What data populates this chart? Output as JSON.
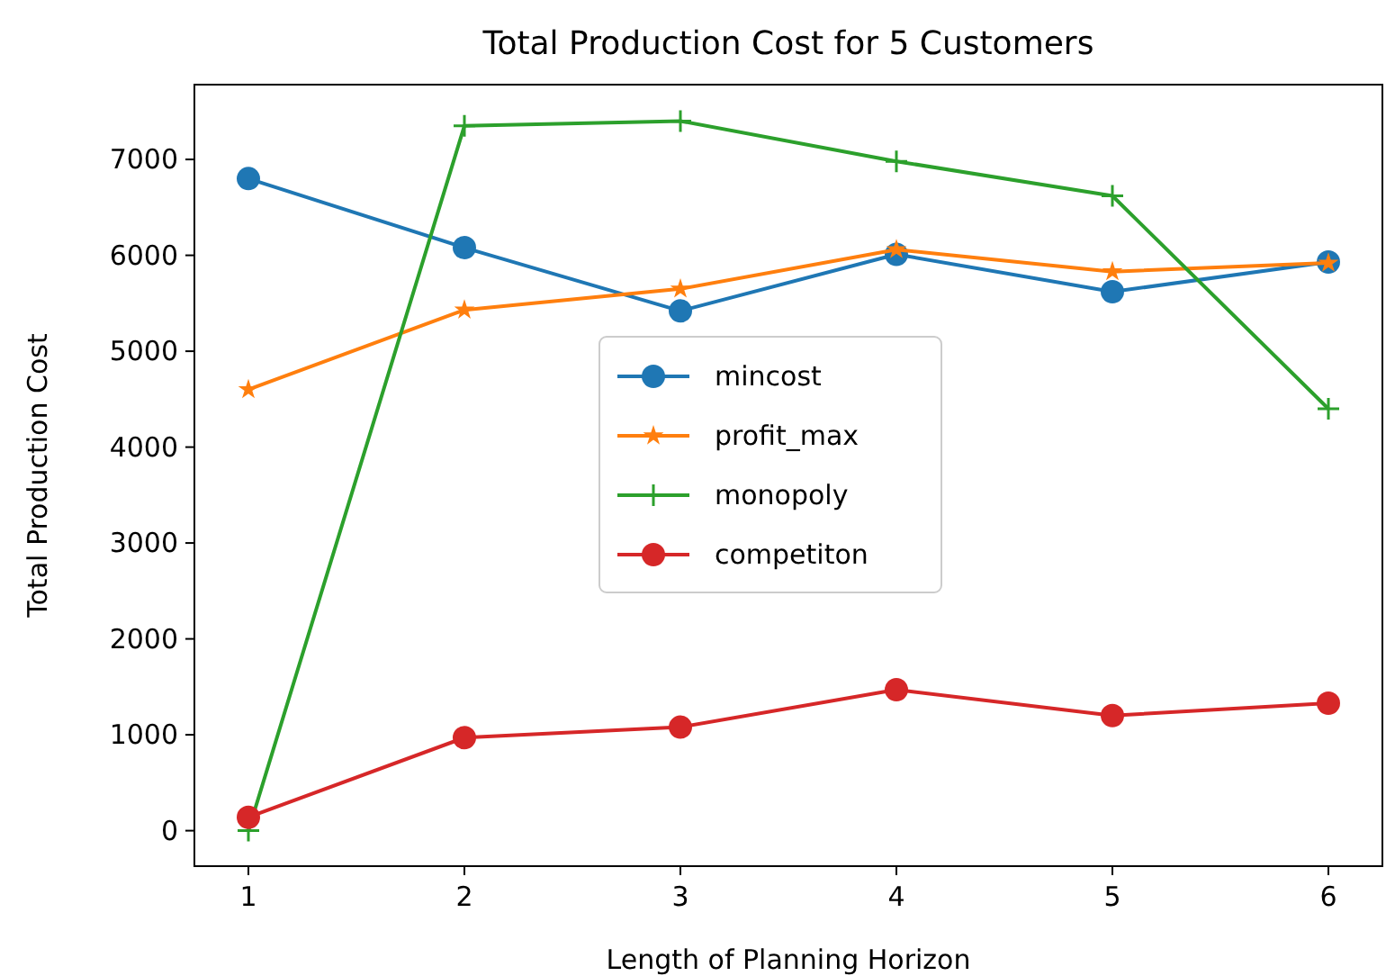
{
  "chart_data": {
    "type": "line",
    "title": "Total Production Cost for 5 Customers",
    "xlabel": "Length of Planning Horizon",
    "ylabel": "Total Production Cost",
    "x": [
      1,
      2,
      3,
      4,
      5,
      6
    ],
    "series": [
      {
        "name": "mincost",
        "color": "#1f77b4",
        "marker": "circle",
        "values": [
          6800,
          6080,
          5420,
          6010,
          5620,
          5930
        ]
      },
      {
        "name": "profit_max",
        "color": "#ff7f0e",
        "marker": "star",
        "values": [
          4600,
          5430,
          5650,
          6060,
          5830,
          5920
        ]
      },
      {
        "name": "monopoly",
        "color": "#2ca02c",
        "marker": "cross",
        "values": [
          0,
          7350,
          7400,
          6980,
          6620,
          4400
        ]
      },
      {
        "name": "competiton",
        "color": "#d62728",
        "marker": "circle",
        "values": [
          140,
          970,
          1080,
          1470,
          1200,
          1330
        ]
      }
    ],
    "xlim": [
      0.75,
      6.25
    ],
    "xticks": [
      1,
      2,
      3,
      4,
      5,
      6
    ],
    "ylim": [
      -370,
      7780
    ],
    "yticks": [
      0,
      1000,
      2000,
      3000,
      4000,
      5000,
      6000,
      7000
    ],
    "grid": false,
    "legend": "center",
    "line_style": "solid"
  }
}
